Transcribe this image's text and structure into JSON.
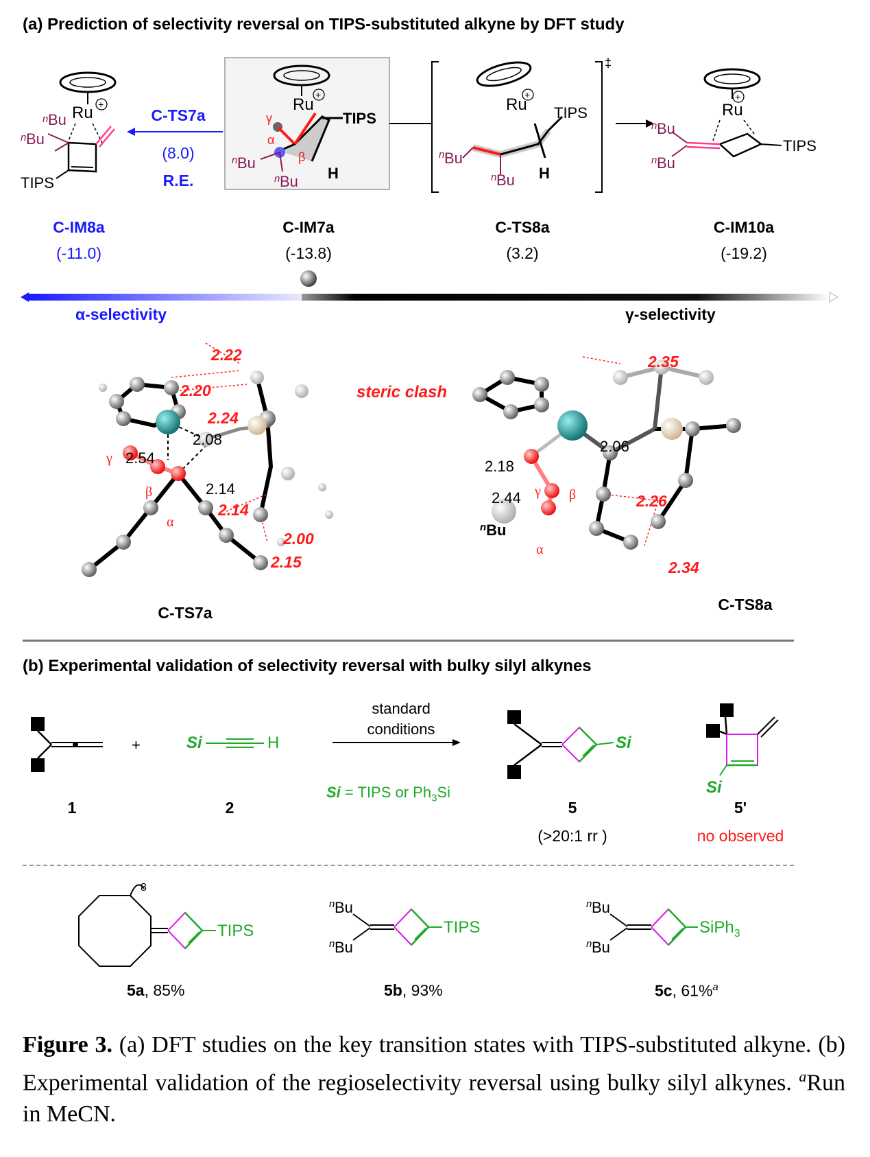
{
  "panel_a": {
    "title": "(a) Prediction of selectivity reversal on TIPS-substituted alkyne by DFT study",
    "pathway": {
      "ts_label": "C-TS7a",
      "ts_value": "(8.0)",
      "re_label": "R.E."
    },
    "species": [
      {
        "name": "C-IM8a",
        "energy": "(-11.0)"
      },
      {
        "name": "C-IM7a",
        "energy": "(-13.8)"
      },
      {
        "name": "C-TS8a",
        "energy": "(3.2)"
      },
      {
        "name": "C-IM10a",
        "energy": "(-19.2)"
      }
    ],
    "structure_text": {
      "ru": "Ru",
      "plus": "+",
      "tips": "TIPS",
      "h": "H",
      "bu": "Bu",
      "n": "n",
      "alpha": "α",
      "beta": "β",
      "gamma": "γ",
      "ddagger": "‡"
    },
    "alpha_selectivity": "α-selectivity",
    "gamma_selectivity": "γ-selectivity",
    "steric_clash": "steric clash",
    "ts7a": {
      "name": "C-TS7a",
      "red_distances": [
        "2.22",
        "2.20",
        "2.24",
        "2.14",
        "2.00",
        "2.15"
      ],
      "black_distances": [
        "2.08",
        "2.54",
        "2.14"
      ]
    },
    "ts8a": {
      "name": "C-TS8a",
      "red_distances": [
        "2.35",
        "2.26",
        "2.34"
      ],
      "black_distances": [
        "2.06",
        "2.18",
        "2.44"
      ],
      "bu_label": "Bu"
    }
  },
  "panel_b": {
    "title": "(b) Experimental validation of selectivity reversal with bulky silyl alkynes",
    "plus": "+",
    "reagent1": "1",
    "reagent2": "2",
    "si_label": "Si",
    "h_label": "H",
    "conditions_line1": "standard",
    "conditions_line2": "conditions",
    "si_def_prefix": "Si",
    "si_def_rest": " = TIPS or Ph",
    "si_def_sub": "3",
    "si_def_end": "Si",
    "product5": "5",
    "product5_note": "(>20:1 rr )",
    "product5p": "5'",
    "product5p_note": "no observed",
    "examples": [
      {
        "id": "5a",
        "yield": ", 85%",
        "group": "TIPS",
        "ring_n": "8"
      },
      {
        "id": "5b",
        "yield": ", 93%",
        "group": "TIPS"
      },
      {
        "id": "5c",
        "yield": ", 61%",
        "group": "SiPh",
        "group_sub": "3",
        "footnote": "a"
      }
    ]
  },
  "caption": {
    "label": "Figure 3.",
    "text_1": " (a) DFT studies on the key transition states with TIPS-substituted alkyne. (b) Experimental validation of the regioselectivity reversal using bulky silyl alkynes. ",
    "footnote_mark": "a",
    "text_2": "Run in MeCN."
  }
}
